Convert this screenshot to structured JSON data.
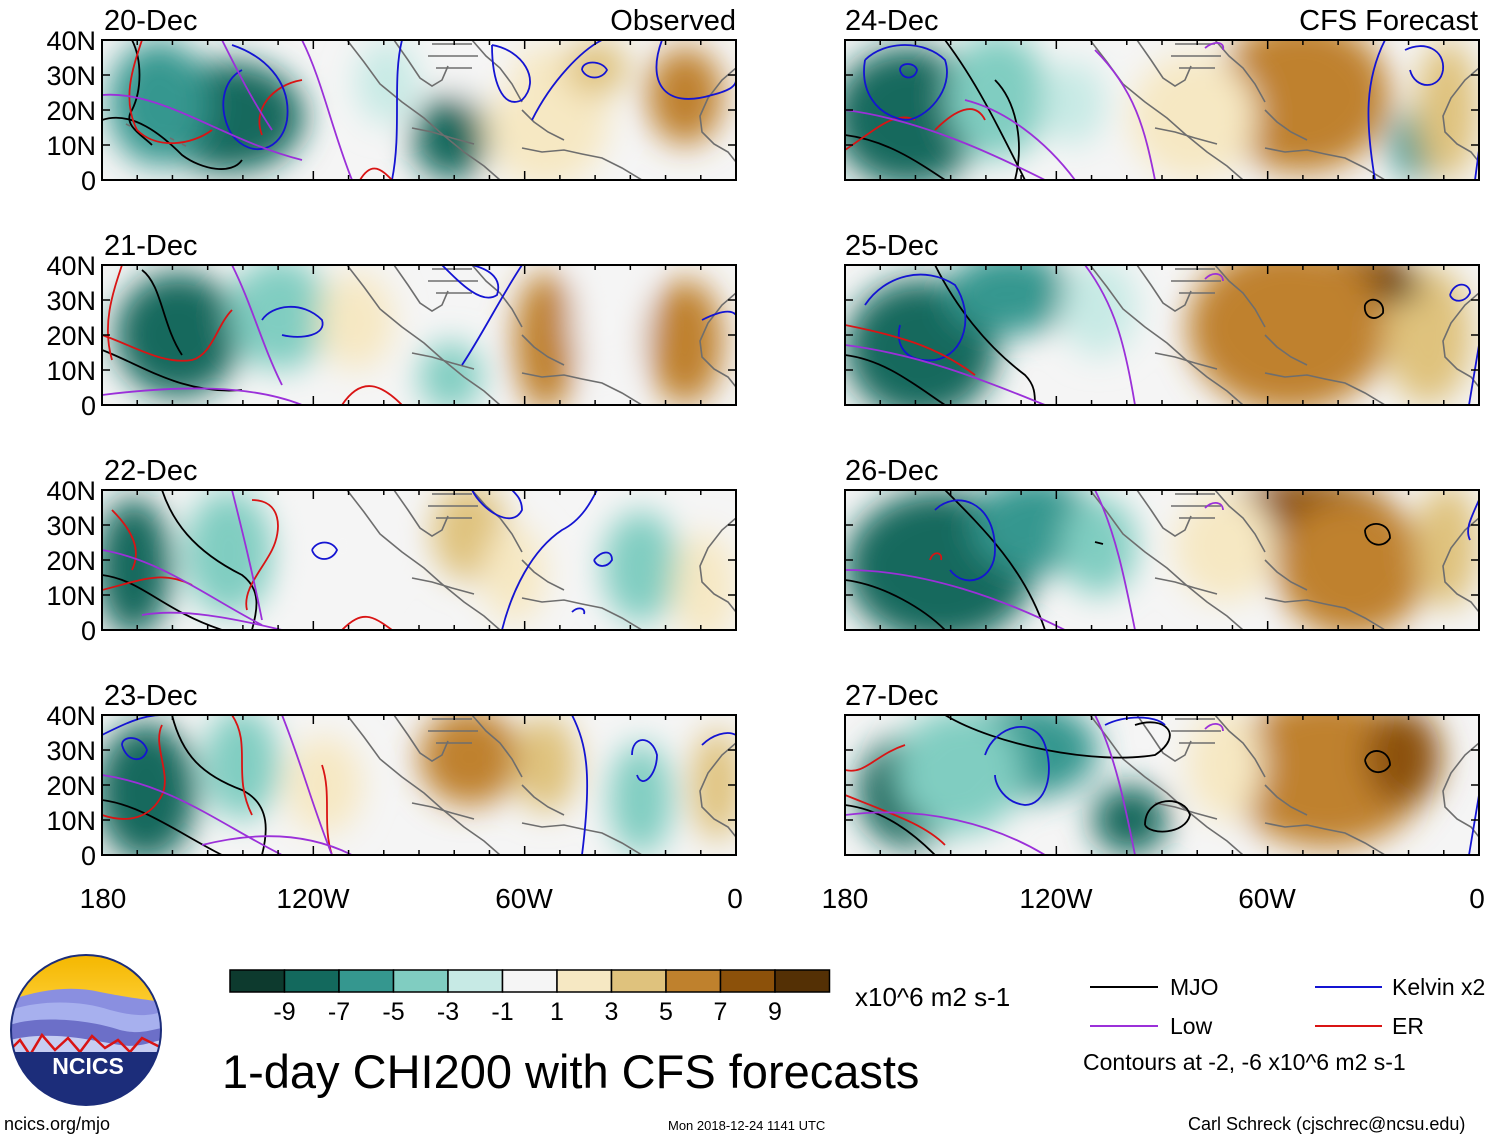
{
  "title": "1-day CHI200 with CFS forecasts",
  "columns": {
    "left_header": "Observed",
    "right_header": "CFS Forecast"
  },
  "panels_left": [
    {
      "date": "20-Dec",
      "blobs": [
        [
          0.2,
          0.55,
          0.12,
          0.4,
          -9
        ],
        [
          0.09,
          0.45,
          0.08,
          0.45,
          -6
        ],
        [
          0.55,
          0.7,
          0.06,
          0.3,
          -8
        ],
        [
          0.45,
          0.3,
          0.05,
          0.3,
          -3
        ],
        [
          0.7,
          0.55,
          0.1,
          0.5,
          2
        ],
        [
          0.92,
          0.4,
          0.06,
          0.35,
          5
        ],
        [
          0.78,
          0.2,
          0.05,
          0.2,
          4
        ],
        [
          0.6,
          0.2,
          0.05,
          0.25,
          -1
        ]
      ]
    },
    {
      "date": "21-Dec",
      "blobs": [
        [
          0.12,
          0.5,
          0.1,
          0.45,
          -8
        ],
        [
          0.28,
          0.35,
          0.08,
          0.4,
          -5
        ],
        [
          0.55,
          0.8,
          0.05,
          0.25,
          -5
        ],
        [
          0.7,
          0.55,
          0.05,
          0.5,
          6
        ],
        [
          0.92,
          0.55,
          0.06,
          0.45,
          5
        ],
        [
          0.4,
          0.4,
          0.06,
          0.35,
          2
        ],
        [
          0.8,
          0.4,
          0.06,
          0.4,
          -1
        ]
      ]
    },
    {
      "date": "22-Dec",
      "blobs": [
        [
          0.05,
          0.55,
          0.06,
          0.5,
          -9
        ],
        [
          0.2,
          0.45,
          0.07,
          0.45,
          -4
        ],
        [
          0.85,
          0.55,
          0.06,
          0.4,
          -5
        ],
        [
          0.58,
          0.3,
          0.06,
          0.35,
          4
        ],
        [
          0.38,
          0.4,
          0.07,
          0.4,
          -1
        ],
        [
          0.65,
          0.6,
          0.05,
          0.35,
          2
        ],
        [
          0.95,
          0.7,
          0.05,
          0.4,
          2
        ]
      ]
    },
    {
      "date": "23-Dec",
      "blobs": [
        [
          0.07,
          0.55,
          0.08,
          0.5,
          -8
        ],
        [
          0.22,
          0.35,
          0.06,
          0.4,
          -4
        ],
        [
          0.85,
          0.6,
          0.05,
          0.4,
          -5
        ],
        [
          0.58,
          0.3,
          0.08,
          0.35,
          5
        ],
        [
          0.35,
          0.5,
          0.06,
          0.35,
          2
        ],
        [
          0.7,
          0.35,
          0.05,
          0.35,
          4
        ],
        [
          0.97,
          0.5,
          0.04,
          0.4,
          4
        ]
      ]
    }
  ],
  "panels_right": [
    {
      "date": "24-Dec",
      "blobs": [
        [
          0.1,
          0.55,
          0.12,
          0.5,
          -9
        ],
        [
          0.24,
          0.4,
          0.08,
          0.45,
          -5
        ],
        [
          0.9,
          0.75,
          0.04,
          0.25,
          -6
        ],
        [
          0.72,
          0.4,
          0.14,
          0.55,
          6
        ],
        [
          0.55,
          0.55,
          0.1,
          0.45,
          2
        ],
        [
          0.95,
          0.5,
          0.05,
          0.5,
          3
        ],
        [
          0.36,
          0.45,
          0.05,
          0.3,
          -2
        ]
      ]
    },
    {
      "date": "25-Dec",
      "blobs": [
        [
          0.12,
          0.6,
          0.12,
          0.5,
          -9
        ],
        [
          0.26,
          0.2,
          0.1,
          0.3,
          -6
        ],
        [
          0.8,
          0.18,
          0.12,
          0.3,
          8
        ],
        [
          0.7,
          0.45,
          0.16,
          0.6,
          5
        ],
        [
          0.92,
          0.5,
          0.07,
          0.5,
          3
        ],
        [
          0.4,
          0.3,
          0.06,
          0.35,
          -3
        ],
        [
          0.87,
          0.16,
          0.04,
          0.1,
          9
        ]
      ]
    },
    {
      "date": "26-Dec",
      "blobs": [
        [
          0.15,
          0.55,
          0.15,
          0.55,
          -9
        ],
        [
          0.3,
          0.25,
          0.1,
          0.35,
          -6
        ],
        [
          0.4,
          0.4,
          0.06,
          0.35,
          -4
        ],
        [
          0.72,
          0.25,
          0.16,
          0.35,
          7
        ],
        [
          0.8,
          0.55,
          0.12,
          0.5,
          5
        ],
        [
          0.95,
          0.4,
          0.05,
          0.45,
          3
        ],
        [
          0.6,
          0.4,
          0.08,
          0.4,
          2
        ]
      ]
    },
    {
      "date": "27-Dec",
      "blobs": [
        [
          0.1,
          0.55,
          0.08,
          0.4,
          -8
        ],
        [
          0.28,
          0.25,
          0.12,
          0.35,
          -7
        ],
        [
          0.45,
          0.75,
          0.06,
          0.25,
          -9
        ],
        [
          0.18,
          0.4,
          0.1,
          0.45,
          -5
        ],
        [
          0.76,
          0.4,
          0.16,
          0.55,
          5
        ],
        [
          0.88,
          0.3,
          0.06,
          0.35,
          7
        ],
        [
          0.6,
          0.35,
          0.06,
          0.4,
          2
        ]
      ]
    }
  ],
  "axes": {
    "lat_labels": [
      "40N",
      "30N",
      "20N",
      "10N",
      "0"
    ],
    "lon_labels": [
      "180",
      "120W",
      "60W",
      "0"
    ]
  },
  "colorbar": {
    "labels": [
      "-9",
      "-7",
      "-5",
      "-3",
      "-1",
      "1",
      "3",
      "5",
      "7",
      "9"
    ],
    "colors": [
      "#0d3a2e",
      "#13695d",
      "#35978f",
      "#80cdc1",
      "#c7eae5",
      "#f5f5f5",
      "#f6e8c3",
      "#dfc27d",
      "#bf812d",
      "#8c510a",
      "#543005"
    ],
    "units": "x10^6 m2 s-1"
  },
  "legend": {
    "items": [
      {
        "label": "MJO",
        "color": "#000000"
      },
      {
        "label": "Kelvin x2",
        "color": "#1414d2"
      },
      {
        "label": "Low",
        "color": "#9b30d9"
      },
      {
        "label": "ER",
        "color": "#d91414"
      }
    ],
    "note": "Contours at -2, -6 x10^6 m2 s-1"
  },
  "logo": {
    "text": "NCICS"
  },
  "footer": {
    "left": "ncics.org/mjo",
    "center": "Mon 2018-12-24 1141 UTC",
    "right": "Carl Schreck (cjschrec@ncsu.edu)"
  }
}
